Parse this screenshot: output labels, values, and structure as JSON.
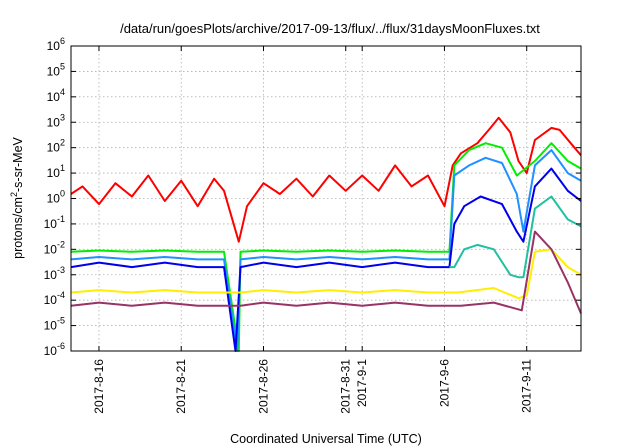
{
  "chart_data": {
    "type": "line",
    "title": "/data/run/goesPlots/archive/2017-09-13/flux/../flux/31daysMoonFluxes.txt",
    "xlabel": "Coordinated Universal Time (UTC)",
    "ylabel_parts": [
      "protons/cm",
      "2",
      "-s-sr-MeV"
    ],
    "y_scale": "log",
    "ylim": [
      1e-06,
      1000000.0
    ],
    "y_ticks": [
      {
        "value": 1e-06,
        "base": "10",
        "exp": "-6"
      },
      {
        "value": 1e-05,
        "base": "10",
        "exp": "-5"
      },
      {
        "value": 0.0001,
        "base": "10",
        "exp": "-4"
      },
      {
        "value": 0.001,
        "base": "10",
        "exp": "-3"
      },
      {
        "value": 0.01,
        "base": "10",
        "exp": "-2"
      },
      {
        "value": 0.1,
        "base": "10",
        "exp": "-1"
      },
      {
        "value": 1,
        "base": "10",
        "exp": "0"
      },
      {
        "value": 10,
        "base": "10",
        "exp": "1"
      },
      {
        "value": 100,
        "base": "10",
        "exp": "2"
      },
      {
        "value": 1000,
        "base": "10",
        "exp": "3"
      },
      {
        "value": 10000,
        "base": "10",
        "exp": "4"
      },
      {
        "value": 100000,
        "base": "10",
        "exp": "5"
      },
      {
        "value": 1000000,
        "base": "10",
        "exp": "6"
      }
    ],
    "x_unit": "days since 2017-08-13",
    "xlim": [
      1.3,
      32.3
    ],
    "x_ticks": [
      {
        "value": 3.0,
        "label": "2017-8-16"
      },
      {
        "value": 8.0,
        "label": "2017-8-21"
      },
      {
        "value": 13.0,
        "label": "2017-8-26"
      },
      {
        "value": 18.0,
        "label": "2017-8-31"
      },
      {
        "value": 19.0,
        "label": "2017-9-1"
      },
      {
        "value": 24.0,
        "label": "2017-9-6"
      },
      {
        "value": 29.0,
        "label": "2017-9-11"
      }
    ],
    "grid": true,
    "legend": "none",
    "series": [
      {
        "color": "#ff0000",
        "values": [
          [
            1.3,
            1.5
          ],
          [
            2,
            3
          ],
          [
            3,
            0.6
          ],
          [
            4,
            4
          ],
          [
            5,
            1.2
          ],
          [
            6,
            8
          ],
          [
            7,
            0.8
          ],
          [
            8,
            5
          ],
          [
            9,
            0.5
          ],
          [
            10,
            6
          ],
          [
            10.6,
            2
          ],
          [
            11.5,
            0.02
          ],
          [
            12,
            0.5
          ],
          [
            13,
            4
          ],
          [
            14,
            1.5
          ],
          [
            15,
            6
          ],
          [
            16,
            1.2
          ],
          [
            17,
            8
          ],
          [
            18,
            2
          ],
          [
            19,
            8
          ],
          [
            20,
            2
          ],
          [
            21,
            20
          ],
          [
            22,
            3
          ],
          [
            23,
            8
          ],
          [
            24,
            0.5
          ],
          [
            24.5,
            20
          ],
          [
            25,
            60
          ],
          [
            26,
            150
          ],
          [
            26.8,
            600
          ],
          [
            27.3,
            1500
          ],
          [
            28,
            400
          ],
          [
            28.5,
            30
          ],
          [
            29,
            10
          ],
          [
            29.5,
            200
          ],
          [
            30.5,
            600
          ],
          [
            31,
            500
          ],
          [
            31.8,
            120
          ],
          [
            32.3,
            50
          ]
        ]
      },
      {
        "color": "#00ee00",
        "values": [
          [
            1.3,
            0.008
          ],
          [
            3,
            0.009
          ],
          [
            5,
            0.008
          ],
          [
            7,
            0.009
          ],
          [
            9,
            0.008
          ],
          [
            10.6,
            0.008
          ],
          [
            11.5,
            1e-06
          ],
          [
            11.6,
            0.008
          ],
          [
            13,
            0.009
          ],
          [
            15,
            0.008
          ],
          [
            17,
            0.009
          ],
          [
            19,
            0.008
          ],
          [
            21,
            0.009
          ],
          [
            23,
            0.008
          ],
          [
            24.3,
            0.008
          ],
          [
            24.6,
            20
          ],
          [
            25.5,
            80
          ],
          [
            26.5,
            150
          ],
          [
            27.5,
            100
          ],
          [
            28.4,
            8
          ],
          [
            29.5,
            30
          ],
          [
            30.5,
            150
          ],
          [
            31.5,
            30
          ],
          [
            32.3,
            15
          ]
        ]
      },
      {
        "color": "#1e90ff",
        "values": [
          [
            1.3,
            0.004
          ],
          [
            3,
            0.005
          ],
          [
            5,
            0.004
          ],
          [
            7,
            0.005
          ],
          [
            9,
            0.004
          ],
          [
            10.6,
            0.004
          ],
          [
            11.4,
            1e-06
          ],
          [
            11.6,
            0.004
          ],
          [
            13,
            0.005
          ],
          [
            15,
            0.004
          ],
          [
            17,
            0.005
          ],
          [
            19,
            0.004
          ],
          [
            21,
            0.005
          ],
          [
            23,
            0.004
          ],
          [
            24.3,
            0.004
          ],
          [
            24.6,
            8
          ],
          [
            25.5,
            20
          ],
          [
            26.5,
            40
          ],
          [
            27.5,
            25
          ],
          [
            28.4,
            1.5
          ],
          [
            28.8,
            0.05
          ],
          [
            29.5,
            20
          ],
          [
            30.5,
            80
          ],
          [
            31.5,
            10
          ],
          [
            32.3,
            5
          ]
        ]
      },
      {
        "color": "#0000ee",
        "values": [
          [
            1.3,
            0.002
          ],
          [
            3,
            0.003
          ],
          [
            5,
            0.002
          ],
          [
            7,
            0.003
          ],
          [
            9,
            0.002
          ],
          [
            10.6,
            0.002
          ],
          [
            11.3,
            1e-06
          ],
          [
            11.6,
            0.002
          ],
          [
            13,
            0.003
          ],
          [
            15,
            0.002
          ],
          [
            17,
            0.003
          ],
          [
            19,
            0.002
          ],
          [
            21,
            0.003
          ],
          [
            23,
            0.002
          ],
          [
            24.3,
            0.002
          ],
          [
            24.6,
            0.1
          ],
          [
            25.2,
            0.5
          ],
          [
            26.2,
            1.2
          ],
          [
            27.5,
            0.6
          ],
          [
            28.4,
            0.05
          ],
          [
            28.8,
            0.02
          ],
          [
            29.5,
            3
          ],
          [
            30.5,
            15
          ],
          [
            31.5,
            2
          ],
          [
            32.3,
            0.8
          ]
        ]
      },
      {
        "color": "#20c0a0",
        "values": [
          [
            24.3,
            0.002
          ],
          [
            24.6,
            0.002
          ],
          [
            25.2,
            0.01
          ],
          [
            26,
            0.015
          ],
          [
            27,
            0.01
          ],
          [
            28,
            0.001
          ],
          [
            28.5,
            0.0008
          ],
          [
            28.8,
            0.0008
          ],
          [
            29.5,
            0.4
          ],
          [
            30.5,
            1.2
          ],
          [
            31.5,
            0.15
          ],
          [
            32.3,
            0.08
          ]
        ]
      },
      {
        "color": "#ffee00",
        "values": [
          [
            1.3,
            0.0002
          ],
          [
            3,
            0.00025
          ],
          [
            5,
            0.0002
          ],
          [
            7,
            0.00025
          ],
          [
            9,
            0.0002
          ],
          [
            10.6,
            0.0002
          ],
          [
            11.6,
            0.0002
          ],
          [
            13,
            0.00025
          ],
          [
            15,
            0.0002
          ],
          [
            17,
            0.00025
          ],
          [
            19,
            0.0002
          ],
          [
            21,
            0.00025
          ],
          [
            23,
            0.0002
          ],
          [
            24.3,
            0.0002
          ],
          [
            24.8,
            0.0002
          ],
          [
            27,
            0.0003
          ],
          [
            28.5,
            0.00012
          ],
          [
            29,
            0.00015
          ],
          [
            29.5,
            0.008
          ],
          [
            30.5,
            0.01
          ],
          [
            31.5,
            0.002
          ],
          [
            32.3,
            0.001
          ]
        ]
      },
      {
        "color": "#993366",
        "values": [
          [
            1.3,
            6e-05
          ],
          [
            3,
            8e-05
          ],
          [
            5,
            6e-05
          ],
          [
            7,
            8e-05
          ],
          [
            9,
            6e-05
          ],
          [
            10.6,
            6e-05
          ],
          [
            11.6,
            6e-05
          ],
          [
            13,
            8e-05
          ],
          [
            15,
            6e-05
          ],
          [
            17,
            8e-05
          ],
          [
            19,
            6e-05
          ],
          [
            21,
            8e-05
          ],
          [
            23,
            6e-05
          ],
          [
            24.3,
            6e-05
          ],
          [
            25,
            6e-05
          ],
          [
            27,
            8e-05
          ],
          [
            28.7,
            4e-05
          ],
          [
            29.5,
            0.05
          ],
          [
            30.5,
            0.01
          ],
          [
            31.5,
            0.0005
          ],
          [
            32.3,
            3e-05
          ]
        ]
      }
    ]
  }
}
